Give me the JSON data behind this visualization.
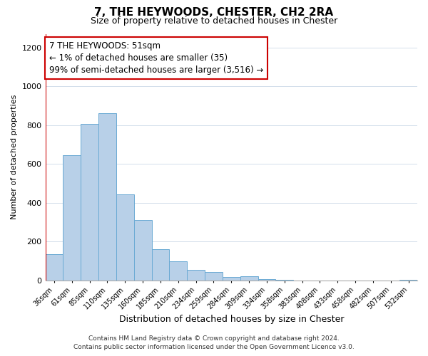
{
  "title": "7, THE HEYWOODS, CHESTER, CH2 2RA",
  "subtitle": "Size of property relative to detached houses in Chester",
  "xlabel": "Distribution of detached houses by size in Chester",
  "ylabel": "Number of detached properties",
  "bar_labels": [
    "36sqm",
    "61sqm",
    "85sqm",
    "110sqm",
    "135sqm",
    "160sqm",
    "185sqm",
    "210sqm",
    "234sqm",
    "259sqm",
    "284sqm",
    "309sqm",
    "334sqm",
    "358sqm",
    "383sqm",
    "408sqm",
    "433sqm",
    "458sqm",
    "482sqm",
    "507sqm",
    "532sqm"
  ],
  "bar_values": [
    135,
    645,
    805,
    860,
    445,
    310,
    160,
    97,
    55,
    43,
    18,
    22,
    8,
    3,
    1,
    0,
    0,
    0,
    0,
    0,
    2
  ],
  "bar_color": "#b8d0e8",
  "bar_edge_color": "#6aaad4",
  "highlight_color": "#cc0000",
  "ylim": [
    0,
    1270
  ],
  "yticks": [
    0,
    200,
    400,
    600,
    800,
    1000,
    1200
  ],
  "annotation_title": "7 THE HEYWOODS: 51sqm",
  "annotation_line1": "← 1% of detached houses are smaller (35)",
  "annotation_line2": "99% of semi-detached houses are larger (3,516) →",
  "annotation_box_color": "#ffffff",
  "annotation_box_edge": "#cc0000",
  "footer1": "Contains HM Land Registry data © Crown copyright and database right 2024.",
  "footer2": "Contains public sector information licensed under the Open Government Licence v3.0.",
  "background_color": "#ffffff",
  "grid_color": "#ccd9e8"
}
